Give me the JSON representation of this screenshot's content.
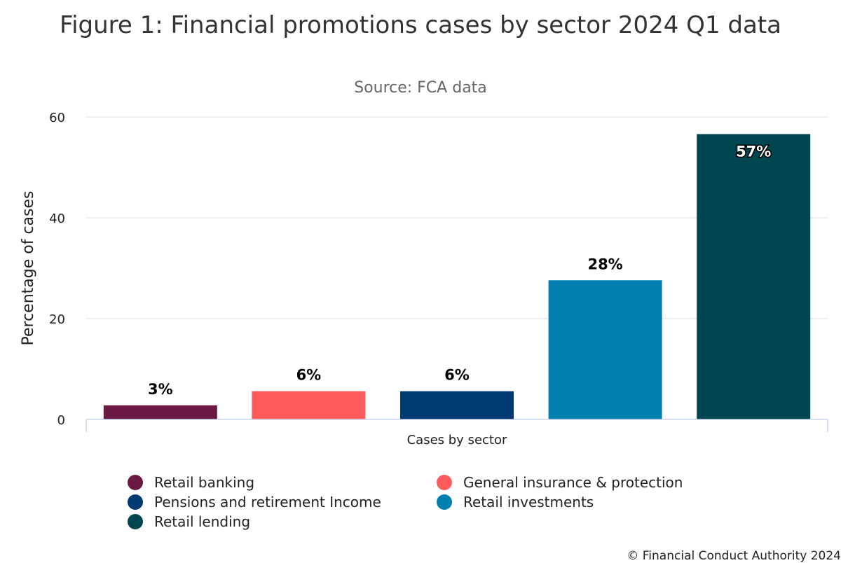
{
  "chart_data": {
    "type": "bar",
    "title": "Figure 1: Financial promotions cases by sector 2024 Q1 data",
    "subtitle": "Source: FCA data",
    "xlabel": "Cases by sector",
    "ylabel": "Percentage of cases",
    "ylim": [
      0,
      60
    ],
    "yticks": [
      "0",
      "20",
      "40",
      "60"
    ],
    "grid": true,
    "legend_position": "bottom",
    "series": [
      {
        "name": "Retail banking",
        "value": 2.8,
        "label": "3%",
        "color": "#6b1b43"
      },
      {
        "name": "General insurance & protection",
        "value": 5.6,
        "label": "6%",
        "color": "#ff5a5c"
      },
      {
        "name": "Pensions and retirement Income",
        "value": 5.6,
        "label": "6%",
        "color": "#003a73"
      },
      {
        "name": "Retail investments",
        "value": 27.6,
        "label": "28%",
        "color": "#0080b0"
      },
      {
        "name": "Retail lending",
        "value": 56.6,
        "label": "57%",
        "color": "#004651"
      }
    ]
  },
  "credit": "© Financial Conduct Authority 2024"
}
